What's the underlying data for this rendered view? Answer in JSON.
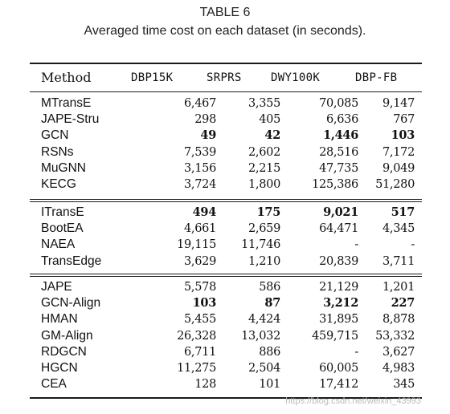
{
  "caption": {
    "title": "TABLE 6",
    "subtitle": "Averaged time cost on each dataset (in seconds)."
  },
  "header": {
    "method": "Method",
    "columns": [
      "DBP15K",
      "SRPRS",
      "DWY100K",
      "DBP-FB"
    ]
  },
  "groups": [
    [
      {
        "method": "MTransE",
        "values": [
          "6,467",
          "3,355",
          "70,085",
          "9,147"
        ],
        "bold": [
          false,
          false,
          false,
          false
        ]
      },
      {
        "method": "JAPE-Stru",
        "values": [
          "298",
          "405",
          "6,636",
          "767"
        ],
        "bold": [
          false,
          false,
          false,
          false
        ]
      },
      {
        "method": "GCN",
        "values": [
          "49",
          "42",
          "1,446",
          "103"
        ],
        "bold": [
          true,
          true,
          true,
          true
        ]
      },
      {
        "method": "RSNs",
        "values": [
          "7,539",
          "2,602",
          "28,516",
          "7,172"
        ],
        "bold": [
          false,
          false,
          false,
          false
        ]
      },
      {
        "method": "MuGNN",
        "values": [
          "3,156",
          "2,215",
          "47,735",
          "9,049"
        ],
        "bold": [
          false,
          false,
          false,
          false
        ]
      },
      {
        "method": "KECG",
        "values": [
          "3,724",
          "1,800",
          "125,386",
          "51,280"
        ],
        "bold": [
          false,
          false,
          false,
          false
        ]
      }
    ],
    [
      {
        "method": "ITransE",
        "values": [
          "494",
          "175",
          "9,021",
          "517"
        ],
        "bold": [
          true,
          true,
          true,
          true
        ]
      },
      {
        "method": "BootEA",
        "values": [
          "4,661",
          "2,659",
          "64,471",
          "4,345"
        ],
        "bold": [
          false,
          false,
          false,
          false
        ]
      },
      {
        "method": "NAEA",
        "values": [
          "19,115",
          "11,746",
          "-",
          "-"
        ],
        "bold": [
          false,
          false,
          false,
          false
        ]
      },
      {
        "method": "TransEdge",
        "values": [
          "3,629",
          "1,210",
          "20,839",
          "3,711"
        ],
        "bold": [
          false,
          false,
          false,
          false
        ]
      }
    ],
    [
      {
        "method": "JAPE",
        "values": [
          "5,578",
          "586",
          "21,129",
          "1,201"
        ],
        "bold": [
          false,
          false,
          false,
          false
        ]
      },
      {
        "method": "GCN-Align",
        "values": [
          "103",
          "87",
          "3,212",
          "227"
        ],
        "bold": [
          true,
          true,
          true,
          true
        ]
      },
      {
        "method": "HMAN",
        "values": [
          "5,455",
          "4,424",
          "31,895",
          "8,878"
        ],
        "bold": [
          false,
          false,
          false,
          false
        ]
      },
      {
        "method": "GM-Align",
        "values": [
          "26,328",
          "13,032",
          "459,715",
          "53,332"
        ],
        "bold": [
          false,
          false,
          false,
          false
        ]
      },
      {
        "method": "RDGCN",
        "values": [
          "6,711",
          "886",
          "-",
          "3,627"
        ],
        "bold": [
          false,
          false,
          false,
          false
        ]
      },
      {
        "method": "HGCN",
        "values": [
          "11,275",
          "2,504",
          "60,005",
          "4,983"
        ],
        "bold": [
          false,
          false,
          false,
          false
        ]
      },
      {
        "method": "CEA",
        "values": [
          "128",
          "101",
          "17,412",
          "345"
        ],
        "bold": [
          false,
          false,
          false,
          false
        ]
      }
    ]
  ],
  "watermark": "https://blog.csdn.net/weixin_43993"
}
